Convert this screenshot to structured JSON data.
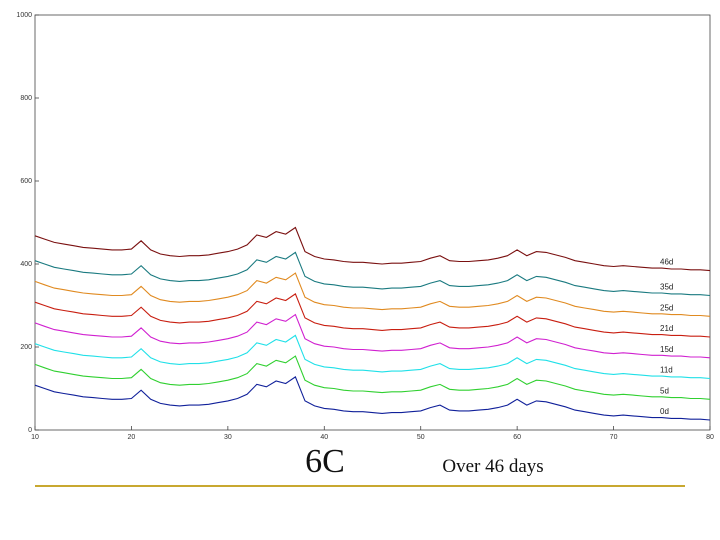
{
  "chart_data": {
    "type": "line",
    "title": "6C",
    "subtitle": "Over 46 days",
    "x": [
      10,
      11,
      12,
      13,
      14,
      15,
      16,
      17,
      18,
      19,
      20,
      21,
      22,
      23,
      24,
      25,
      26,
      27,
      28,
      29,
      30,
      31,
      32,
      33,
      34,
      35,
      36,
      37,
      38,
      39,
      40,
      41,
      42,
      43,
      44,
      45,
      46,
      47,
      48,
      49,
      50,
      51,
      52,
      53,
      54,
      55,
      56,
      57,
      58,
      59,
      60,
      61,
      62,
      63,
      64,
      65,
      66,
      67,
      68,
      69,
      70,
      71,
      72,
      73,
      74,
      75,
      76,
      77,
      78,
      79,
      80
    ],
    "xlim": [
      10,
      80
    ],
    "xticks": [
      10,
      20,
      30,
      40,
      50,
      60,
      70,
      80
    ],
    "ylim": [
      0,
      1000
    ],
    "yticks": [
      0,
      200,
      400,
      600,
      800,
      1000
    ],
    "series": [
      {
        "name": "46d",
        "color": "#7a1010",
        "values": [
          468,
          460,
          452,
          448,
          444,
          440,
          438,
          436,
          434,
          434,
          436,
          456,
          434,
          424,
          420,
          418,
          420,
          420,
          422,
          426,
          430,
          436,
          446,
          470,
          464,
          478,
          472,
          488,
          430,
          418,
          412,
          410,
          406,
          404,
          404,
          402,
          400,
          402,
          402,
          404,
          406,
          414,
          420,
          408,
          406,
          406,
          408,
          410,
          414,
          420,
          434,
          420,
          430,
          428,
          422,
          416,
          408,
          404,
          400,
          396,
          394,
          396,
          394,
          392,
          390,
          390,
          388,
          388,
          386,
          386,
          384
        ]
      },
      {
        "name": "35d",
        "color": "#1a7a80",
        "values": [
          408,
          400,
          392,
          388,
          384,
          380,
          378,
          376,
          374,
          374,
          376,
          396,
          374,
          364,
          360,
          358,
          360,
          360,
          362,
          366,
          370,
          376,
          386,
          410,
          404,
          418,
          412,
          428,
          370,
          358,
          352,
          350,
          346,
          344,
          344,
          342,
          340,
          342,
          342,
          344,
          346,
          354,
          360,
          348,
          346,
          346,
          348,
          350,
          354,
          360,
          374,
          360,
          370,
          368,
          362,
          356,
          348,
          344,
          340,
          336,
          334,
          336,
          334,
          332,
          330,
          330,
          328,
          328,
          326,
          326,
          324
        ]
      },
      {
        "name": "25d",
        "color": "#e08a20",
        "values": [
          358,
          350,
          342,
          338,
          334,
          330,
          328,
          326,
          324,
          324,
          326,
          346,
          324,
          314,
          310,
          308,
          310,
          310,
          312,
          316,
          320,
          326,
          336,
          360,
          354,
          368,
          362,
          378,
          320,
          308,
          302,
          300,
          296,
          294,
          294,
          292,
          290,
          292,
          292,
          294,
          296,
          304,
          310,
          298,
          296,
          296,
          298,
          300,
          304,
          310,
          324,
          310,
          320,
          318,
          312,
          306,
          298,
          294,
          290,
          286,
          284,
          286,
          284,
          282,
          280,
          280,
          278,
          278,
          276,
          276,
          274
        ]
      },
      {
        "name": "21d",
        "color": "#c81e10",
        "values": [
          308,
          300,
          292,
          288,
          284,
          280,
          278,
          276,
          274,
          274,
          276,
          296,
          274,
          264,
          260,
          258,
          260,
          260,
          262,
          266,
          270,
          276,
          286,
          310,
          304,
          318,
          312,
          328,
          270,
          258,
          252,
          250,
          246,
          244,
          244,
          242,
          240,
          242,
          242,
          244,
          246,
          254,
          260,
          248,
          246,
          246,
          248,
          250,
          254,
          260,
          274,
          260,
          270,
          268,
          262,
          256,
          248,
          244,
          240,
          236,
          234,
          236,
          234,
          232,
          230,
          230,
          228,
          228,
          226,
          226,
          224
        ]
      },
      {
        "name": "15d",
        "color": "#d020d0",
        "values": [
          258,
          250,
          242,
          238,
          234,
          230,
          228,
          226,
          224,
          224,
          226,
          246,
          224,
          214,
          210,
          208,
          210,
          210,
          212,
          216,
          220,
          226,
          236,
          260,
          254,
          268,
          262,
          278,
          220,
          208,
          202,
          200,
          196,
          194,
          194,
          192,
          190,
          192,
          192,
          194,
          196,
          204,
          210,
          198,
          196,
          196,
          198,
          200,
          204,
          210,
          224,
          210,
          220,
          218,
          212,
          206,
          198,
          194,
          190,
          186,
          184,
          186,
          184,
          182,
          180,
          180,
          178,
          178,
          176,
          176,
          174
        ]
      },
      {
        "name": "11d",
        "color": "#20e0e8",
        "values": [
          208,
          200,
          192,
          188,
          184,
          180,
          178,
          176,
          174,
          174,
          176,
          196,
          174,
          164,
          160,
          158,
          160,
          160,
          162,
          166,
          170,
          176,
          186,
          210,
          204,
          218,
          212,
          228,
          170,
          158,
          152,
          150,
          146,
          144,
          144,
          142,
          140,
          142,
          142,
          144,
          146,
          154,
          160,
          148,
          146,
          146,
          148,
          150,
          154,
          160,
          174,
          160,
          170,
          168,
          162,
          156,
          148,
          144,
          140,
          136,
          134,
          136,
          134,
          132,
          130,
          130,
          128,
          128,
          126,
          126,
          124
        ]
      },
      {
        "name": "5d",
        "color": "#30d030",
        "values": [
          158,
          150,
          142,
          138,
          134,
          130,
          128,
          126,
          124,
          124,
          126,
          146,
          124,
          114,
          110,
          108,
          110,
          110,
          112,
          116,
          120,
          126,
          136,
          160,
          154,
          168,
          162,
          178,
          120,
          108,
          102,
          100,
          96,
          94,
          94,
          92,
          90,
          92,
          92,
          94,
          96,
          104,
          110,
          98,
          96,
          96,
          98,
          100,
          104,
          110,
          124,
          110,
          120,
          118,
          112,
          106,
          98,
          94,
          90,
          86,
          84,
          86,
          84,
          82,
          80,
          80,
          78,
          78,
          76,
          76,
          74
        ]
      },
      {
        "name": "0d",
        "color": "#10209a",
        "values": [
          108,
          100,
          92,
          88,
          84,
          80,
          78,
          76,
          74,
          74,
          76,
          96,
          74,
          64,
          60,
          58,
          60,
          60,
          62,
          66,
          70,
          76,
          86,
          110,
          104,
          118,
          112,
          128,
          70,
          58,
          52,
          50,
          46,
          44,
          44,
          42,
          40,
          42,
          42,
          44,
          46,
          54,
          60,
          48,
          46,
          46,
          48,
          50,
          54,
          60,
          74,
          60,
          70,
          68,
          62,
          56,
          48,
          44,
          40,
          36,
          34,
          36,
          34,
          32,
          30,
          30,
          28,
          28,
          26,
          26,
          24
        ]
      }
    ]
  }
}
